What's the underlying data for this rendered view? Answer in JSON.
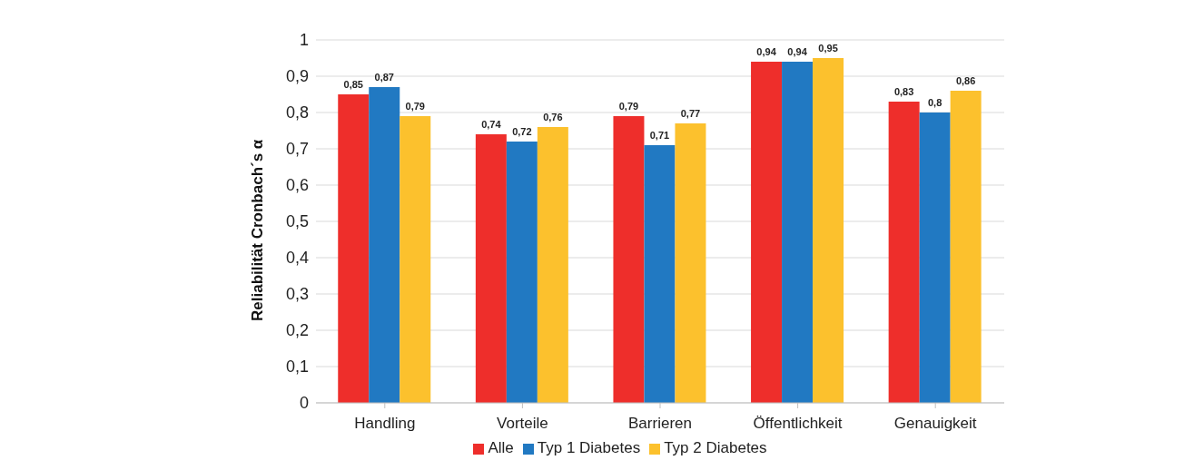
{
  "chart_data": {
    "type": "bar",
    "ylabel": "Reliabilität Cronbach´s α",
    "categories": [
      "Handling",
      "Vorteile",
      "Barrieren",
      "Öffentlichkeit",
      "Genauigkeit"
    ],
    "series": [
      {
        "name": "Alle",
        "color": "#ee2e2b",
        "values": [
          0.85,
          0.74,
          0.79,
          0.94,
          0.83
        ],
        "value_labels": [
          "0,85",
          "0,74",
          "0,79",
          "0,94",
          "0,83"
        ]
      },
      {
        "name": "Typ 1 Diabetes",
        "color": "#2179c2",
        "values": [
          0.87,
          0.72,
          0.71,
          0.94,
          0.8
        ],
        "value_labels": [
          "0,87",
          "0,72",
          "0,71",
          "0,94",
          "0,8"
        ]
      },
      {
        "name": "Typ 2 Diabetes",
        "color": "#fcc12d",
        "values": [
          0.79,
          0.76,
          0.77,
          0.95,
          0.86
        ],
        "value_labels": [
          "0,79",
          "0,76",
          "0,77",
          "0,95",
          "0,86"
        ]
      }
    ],
    "ylim": [
      0,
      1
    ],
    "yticks": [
      0,
      {
        "value": 0.1,
        "label": "0,1"
      },
      {
        "value": 0.2,
        "label": "0,2"
      },
      {
        "value": 0.3,
        "label": "0,3"
      },
      {
        "value": 0.4,
        "label": "0,4"
      },
      {
        "value": 0.5,
        "label": "0,5"
      },
      {
        "value": 0.6,
        "label": "0,6"
      },
      {
        "value": 0.7,
        "label": "0,7"
      },
      {
        "value": 0.8,
        "label": "0,8"
      },
      {
        "value": 0.9,
        "label": "0,9"
      },
      1
    ],
    "grid": "y",
    "legend": "bottom"
  }
}
